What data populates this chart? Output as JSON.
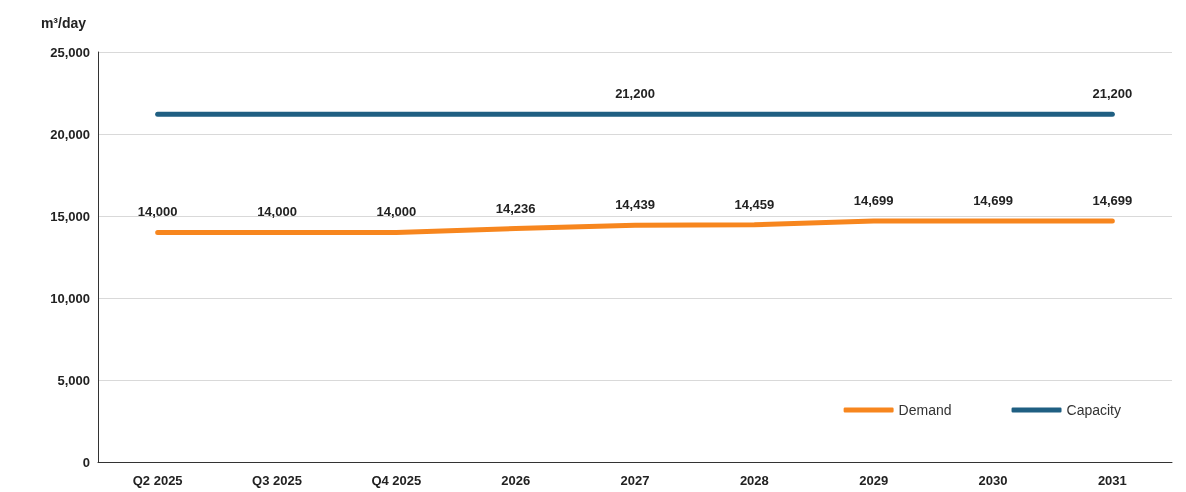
{
  "chart_data": {
    "type": "line",
    "ylabel": "m³/day",
    "categories": [
      "Q2 2025",
      "Q3 2025",
      "Q4 2025",
      "2026",
      "2027",
      "2028",
      "2029",
      "2030",
      "2031"
    ],
    "series": [
      {
        "name": "Demand",
        "color": "#f7861e",
        "values": [
          14000,
          14000,
          14000,
          14236,
          14439,
          14459,
          14699,
          14699,
          14699
        ],
        "value_labels": [
          "14,000",
          "14,000",
          "14,000",
          "14,236",
          "14,439",
          "14,459",
          "14,699",
          "14,699",
          "14,699"
        ]
      },
      {
        "name": "Capacity",
        "color": "#1f5f82",
        "values": [
          21200,
          21200,
          21200,
          21200,
          21200,
          21200,
          21200,
          21200,
          21200
        ],
        "value_labels": [
          null,
          null,
          null,
          null,
          "21,200",
          null,
          null,
          null,
          "21,200"
        ]
      }
    ],
    "ylim": [
      0,
      25000
    ],
    "yticks": [
      {
        "value": 0,
        "label": "0"
      },
      {
        "value": 5000,
        "label": "5,000"
      },
      {
        "value": 10000,
        "label": "10,000"
      },
      {
        "value": 15000,
        "label": "15,000"
      },
      {
        "value": 20000,
        "label": "20,000"
      },
      {
        "value": 25000,
        "label": "25,000"
      }
    ],
    "grid": "y",
    "legend": "bottom right",
    "marker": "none",
    "line_style": "solid"
  }
}
